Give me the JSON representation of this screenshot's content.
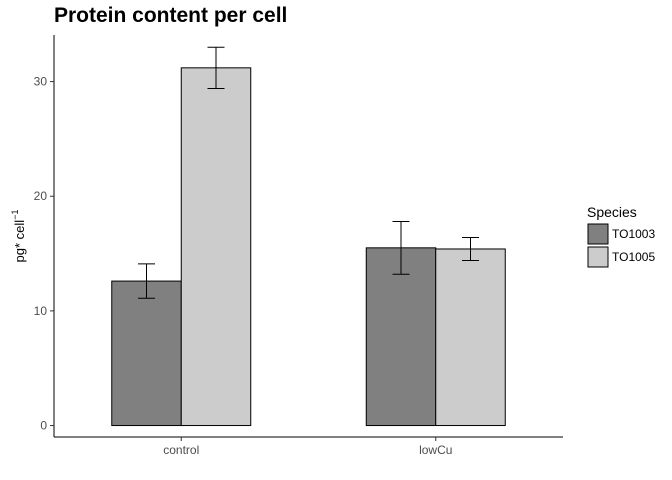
{
  "chart_data": {
    "type": "bar",
    "title": "Protein content per cell",
    "xlabel": "",
    "ylabel": "pg* cell",
    "ylabel_superscript": "−1",
    "categories": [
      "control",
      "lowCu"
    ],
    "series": [
      {
        "name": "TO1003",
        "color": "#808080",
        "values": [
          12.6,
          15.5
        ],
        "error": [
          1.5,
          2.3
        ]
      },
      {
        "name": "TO1005",
        "color": "#cccccc",
        "values": [
          31.2,
          15.4
        ],
        "error": [
          1.8,
          1.0
        ]
      }
    ],
    "ylim": [
      -1.0,
      34.5
    ],
    "yticks": [
      0,
      10,
      20,
      30
    ],
    "grid": false,
    "legend": {
      "title": "Species",
      "position": "right"
    }
  }
}
